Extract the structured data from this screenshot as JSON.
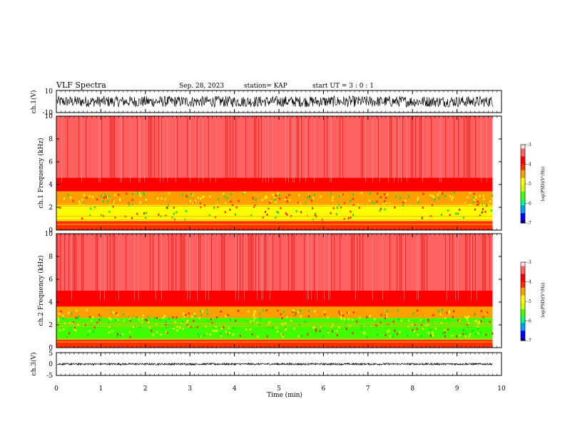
{
  "header": {
    "title": "VLF Spectra",
    "date": "Sep. 28, 2023",
    "station": "station= KAP",
    "start": "start  UT  =   3  : 0   : 1"
  },
  "colors": {
    "spectrum_stops": [
      "#000060",
      "#0000ff",
      "#00a0ff",
      "#00ff80",
      "#40ff00",
      "#d0ff00",
      "#ffff00",
      "#ffa000",
      "#ff3000",
      "#ff0000",
      "#ff6060",
      "#ffe0e0"
    ],
    "trace": "#000000",
    "frame": "#000000"
  },
  "chart_data": [
    {
      "type": "line",
      "name": "ch1-waveform",
      "ylabel": "ch.1(V)",
      "ylim": [
        -10,
        10
      ],
      "yticks": [
        "10",
        "-10"
      ],
      "xlim": [
        0,
        10
      ],
      "x_range": [
        0,
        9.8
      ],
      "amplitude_range": [
        -5,
        5
      ]
    },
    {
      "type": "heatmap",
      "name": "ch1-spectrogram",
      "ylabel": "ch.1  Frequency  (kHz)",
      "ylim": [
        0,
        10
      ],
      "yticks": [
        "0",
        "2",
        "4",
        "6",
        "8",
        "10"
      ],
      "xlim": [
        0,
        10
      ],
      "x_range": [
        0,
        9.8
      ],
      "colorbar": {
        "label": "log(PSD)(V²/Hz)",
        "ticks": [
          "-3",
          "-4",
          "-5",
          "-6",
          "-7"
        ],
        "range": [
          -7,
          -3
        ]
      },
      "bands": [
        {
          "freq_khz": [
            0,
            0.8
          ],
          "log_psd": -4.0
        },
        {
          "freq_khz": [
            0.8,
            2.2
          ],
          "log_psd": -5.0
        },
        {
          "freq_khz": [
            2.2,
            3.4
          ],
          "log_psd": -4.5
        },
        {
          "freq_khz": [
            3.4,
            4.6
          ],
          "log_psd": -3.8
        },
        {
          "freq_khz": [
            4.6,
            10
          ],
          "log_psd": -3.3
        }
      ],
      "horizontal_lines_khz": [
        0.5,
        0.9,
        1.2,
        2.1,
        2.3
      ]
    },
    {
      "type": "heatmap",
      "name": "ch2-spectrogram",
      "ylabel": "ch.2  Frequency  (kHz)",
      "ylim": [
        0,
        10
      ],
      "yticks": [
        "0",
        "2",
        "4",
        "6",
        "8",
        "10"
      ],
      "xlim": [
        0,
        10
      ],
      "x_range": [
        0,
        9.8
      ],
      "colorbar": {
        "label": "log(PSD)(V²/Hz)",
        "ticks": [
          "-3",
          "-4",
          "-5",
          "-6",
          "-7"
        ],
        "range": [
          -7,
          -3
        ]
      },
      "bands": [
        {
          "freq_khz": [
            0,
            0.7
          ],
          "log_psd": -4.0
        },
        {
          "freq_khz": [
            0.7,
            2.6
          ],
          "log_psd": -5.4
        },
        {
          "freq_khz": [
            2.6,
            3.6
          ],
          "log_psd": -4.4
        },
        {
          "freq_khz": [
            3.6,
            5.0
          ],
          "log_psd": -3.8
        },
        {
          "freq_khz": [
            5.0,
            10
          ],
          "log_psd": -3.3
        }
      ],
      "horizontal_lines_khz": [
        0.5,
        0.8,
        1.9,
        2.1
      ]
    },
    {
      "type": "line",
      "name": "ch3-waveform",
      "ylabel": "ch.3(V)",
      "ylim": [
        -5,
        5
      ],
      "yticks": [
        "5",
        "0",
        "-5"
      ],
      "xlim": [
        0,
        10
      ],
      "x_range": [
        0,
        9.8
      ],
      "amplitude_range": [
        -0.4,
        0.4
      ],
      "xlabel": "Time  (min)",
      "xticks": [
        "0",
        "1",
        "2",
        "3",
        "4",
        "5",
        "6",
        "7",
        "8",
        "9",
        "10"
      ]
    }
  ]
}
